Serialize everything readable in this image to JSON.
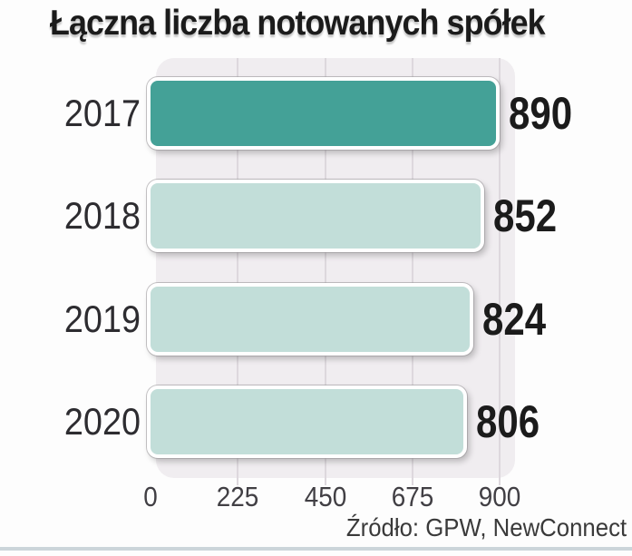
{
  "title": "Łączna liczba notowanych spółek",
  "source": "Źródło: GPW, NewConnect",
  "colors": {
    "highlight_bar": "#44a197",
    "light_bar": "#c2ded9",
    "plot_background": "#f0edf0",
    "gridline": "#ddd8dd",
    "text": "#1b1b1b",
    "divider": "#ccd5da"
  },
  "chart_data": {
    "type": "bar",
    "orientation": "horizontal",
    "title": "Łączna liczba notowanych spółek",
    "categories": [
      "2017",
      "2018",
      "2019",
      "2020"
    ],
    "values": [
      890,
      852,
      824,
      806
    ],
    "value_labels": [
      "890",
      "852",
      "824",
      "806"
    ],
    "bar_colors": [
      "#44a197",
      "#c2ded9",
      "#c2ded9",
      "#c2ded9"
    ],
    "highlight_category": "2017",
    "xlabel": "",
    "ylabel": "",
    "xlim": [
      0,
      900
    ],
    "xticks": [
      0,
      225,
      450,
      675,
      900
    ],
    "grid": true,
    "legend": false,
    "annotation": "Źródło: GPW, NewConnect"
  }
}
